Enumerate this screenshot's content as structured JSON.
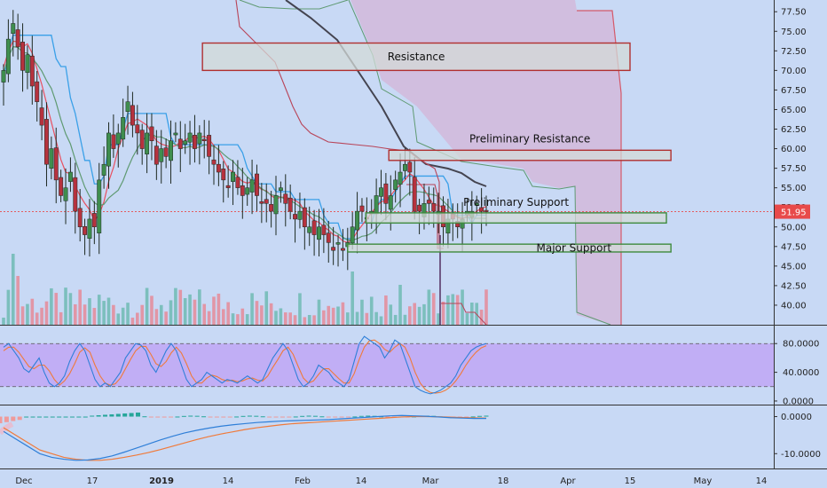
{
  "chart_data": [
    {
      "type": "candlestick",
      "panel": "price",
      "ylim": [
        37.5,
        79
      ],
      "y_ticks": [
        "77.50",
        "75.00",
        "72.50",
        "70.00",
        "67.50",
        "65.00",
        "62.50",
        "60.00",
        "57.50",
        "55.00",
        "52.50",
        "50.00",
        "47.50",
        "45.00",
        "42.50",
        "40.00"
      ],
      "last_price_label": "51.95",
      "last_price": 51.95,
      "zones": [
        {
          "label": "Resistance",
          "low": 70.0,
          "high": 73.5,
          "start": "Jan 09",
          "end": "Apr 15",
          "color": "#b03030"
        },
        {
          "label": "Preliminary Resistance",
          "low": 58.5,
          "high": 59.8,
          "start": "Feb 20",
          "end": "Apr 24",
          "color": "#b03030"
        },
        {
          "label": "Preliminary Support",
          "low": 50.5,
          "high": 51.8,
          "start": "Feb 15",
          "end": "Apr 23",
          "color": "#3e8a3e"
        },
        {
          "label": "Major Support",
          "low": 46.8,
          "high": 47.8,
          "start": "Feb 11",
          "end": "Apr 24",
          "color": "#3e8a3e"
        }
      ],
      "closes": [
        70,
        74,
        76,
        73,
        70,
        72,
        68,
        66,
        63,
        58,
        60,
        56,
        54,
        55,
        57,
        52,
        50,
        49,
        51,
        50,
        56,
        58,
        62,
        60,
        62,
        64,
        66,
        63,
        62,
        60,
        62,
        61,
        58,
        60,
        59,
        61,
        62,
        60,
        61,
        62,
        60,
        62,
        61,
        59,
        58,
        57,
        56,
        55,
        57,
        55,
        54,
        55,
        56,
        54,
        53,
        53,
        52,
        54,
        55,
        53,
        52,
        51,
        52,
        50,
        50,
        49,
        50,
        49,
        48,
        47,
        48,
        47,
        48,
        50,
        52,
        52,
        51,
        52,
        54,
        55,
        53,
        54,
        56,
        57,
        58,
        57,
        52,
        52,
        53,
        53,
        52,
        52,
        50,
        51,
        51,
        50,
        51,
        52,
        52,
        53,
        52,
        51.95
      ]
    },
    {
      "type": "line",
      "panel": "stochastic",
      "ylim": [
        -5,
        105
      ],
      "y_ticks": [
        "80.0000",
        "40.0000",
        "0.0000"
      ],
      "band": [
        20,
        80
      ],
      "series_k": [
        75,
        80,
        70,
        60,
        45,
        40,
        50,
        60,
        40,
        25,
        20,
        25,
        35,
        55,
        70,
        80,
        70,
        50,
        30,
        20,
        25,
        20,
        30,
        40,
        60,
        70,
        80,
        78,
        70,
        50,
        40,
        55,
        70,
        80,
        70,
        50,
        30,
        20,
        25,
        30,
        40,
        35,
        30,
        25,
        30,
        28,
        25,
        30,
        35,
        30,
        25,
        30,
        45,
        60,
        70,
        80,
        70,
        50,
        30,
        20,
        25,
        35,
        50,
        45,
        40,
        30,
        25,
        20,
        30,
        55,
        80,
        90,
        85,
        80,
        75,
        60,
        70,
        85,
        80,
        60,
        40,
        20,
        15,
        12,
        10,
        12,
        15,
        20,
        25,
        35,
        50,
        60,
        70,
        75,
        78,
        80
      ],
      "series_d": [
        70,
        75,
        75,
        68,
        58,
        48,
        45,
        50,
        50,
        42,
        30,
        22,
        28,
        38,
        52,
        68,
        74,
        68,
        50,
        35,
        25,
        22,
        24,
        32,
        45,
        58,
        70,
        76,
        76,
        65,
        52,
        48,
        55,
        67,
        75,
        67,
        52,
        35,
        25,
        25,
        32,
        36,
        34,
        30,
        28,
        29,
        27,
        28,
        31,
        32,
        29,
        28,
        35,
        47,
        58,
        70,
        75,
        65,
        48,
        32,
        25,
        28,
        37,
        45,
        45,
        38,
        31,
        25,
        25,
        38,
        58,
        75,
        84,
        85,
        80,
        72,
        68,
        75,
        80,
        75,
        60,
        40,
        25,
        16,
        12,
        11,
        12,
        15,
        20,
        28,
        38,
        50,
        60,
        68,
        74,
        77
      ]
    },
    {
      "type": "macd",
      "panel": "macd",
      "ylim": [
        -14,
        3
      ],
      "y_ticks": [
        "0.0000",
        "-10.0000"
      ],
      "macd": [
        -4,
        -6,
        -8,
        -10,
        -11,
        -11.5,
        -11.8,
        -11.7,
        -11.3,
        -10.6,
        -9.6,
        -8.5,
        -7.4,
        -6.3,
        -5.3,
        -4.4,
        -3.7,
        -3.1,
        -2.6,
        -2.2,
        -1.9,
        -1.6,
        -1.4,
        -1.2,
        -1.1,
        -1.0,
        -0.9,
        -0.8,
        -0.6,
        -0.4,
        -0.2,
        0.0,
        0.2,
        0.3,
        0.2,
        0.1,
        -0.1,
        -0.3,
        -0.4,
        -0.5,
        -0.5
      ],
      "signal": [
        -3,
        -5,
        -7,
        -9,
        -10,
        -11,
        -11.5,
        -11.8,
        -11.8,
        -11.5,
        -11,
        -10.4,
        -9.7,
        -8.9,
        -8.0,
        -7.1,
        -6.2,
        -5.4,
        -4.7,
        -4.1,
        -3.5,
        -3.0,
        -2.6,
        -2.2,
        -1.9,
        -1.7,
        -1.5,
        -1.3,
        -1.1,
        -0.9,
        -0.7,
        -0.5,
        -0.3,
        -0.1,
        0.0,
        0.0,
        -0.05,
        -0.15,
        -0.25,
        -0.35,
        -0.4
      ]
    }
  ],
  "x_axis": {
    "labels": [
      "Dec",
      "17",
      "2019",
      "14",
      "Feb",
      "14",
      "Mar",
      "18",
      "Apr",
      "15",
      "May",
      "14"
    ]
  },
  "colors": {
    "background": "#c8d9f5",
    "up_candle": "#3f8e4e",
    "down_candle": "#b6323e",
    "cloud": "#d8a8cc",
    "stoch_band": "#c0a8f5",
    "last_price": "#e84a4a",
    "blue_line": "#3aa0e8",
    "red_line": "#e85060",
    "green_line": "#5f9a72",
    "dark_line": "#444450"
  }
}
